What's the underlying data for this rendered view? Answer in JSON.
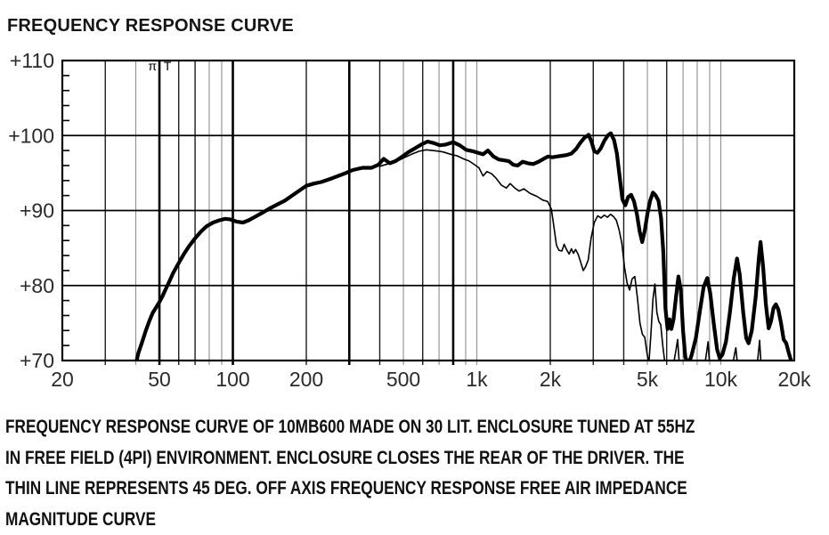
{
  "header": {
    "title": "FREQUENCY RESPONSE CURVE"
  },
  "caption": {
    "lines": [
      "FREQUENCY RESPONSE CURVE OF 10MB600 MADE ON 30 LIT. ENCLOSURE TUNED AT 55HZ",
      "IN FREE FIELD (4PI) ENVIRONMENT. ENCLOSURE CLOSES THE REAR OF THE DRIVER. THE",
      "THIN LINE REPRESENTS 45 DEG. OFF AXIS FREQUENCY RESPONSE FREE AIR IMPEDANCE",
      "MAGNITUDE CURVE"
    ]
  },
  "chart_data": {
    "type": "line",
    "title": "FREQUENCY RESPONSE CURVE",
    "x_axis": {
      "scale": "log",
      "min": 20,
      "max": 20000,
      "ticks": [
        {
          "label": "20",
          "value": 20
        },
        {
          "label": "50",
          "value": 50
        },
        {
          "label": "100",
          "value": 100
        },
        {
          "label": "200",
          "value": 200
        },
        {
          "label": "500",
          "value": 500
        },
        {
          "label": "1k",
          "value": 1000
        },
        {
          "label": "2k",
          "value": 2000
        },
        {
          "label": "5k",
          "value": 5000
        },
        {
          "label": "10k",
          "value": 10000
        },
        {
          "label": "20k",
          "value": 20000
        }
      ],
      "gridlines": [
        {
          "f": 30,
          "shade": "dark"
        },
        {
          "f": 40,
          "shade": "light"
        },
        {
          "f": 50,
          "shade": "heavy"
        },
        {
          "f": 60,
          "shade": "dark"
        },
        {
          "f": 70,
          "shade": "dark"
        },
        {
          "f": 80,
          "shade": "light"
        },
        {
          "f": 90,
          "shade": "light"
        },
        {
          "f": 100,
          "shade": "heavy"
        },
        {
          "f": 200,
          "shade": "dark"
        },
        {
          "f": 300,
          "shade": "heavy"
        },
        {
          "f": 400,
          "shade": "dark"
        },
        {
          "f": 500,
          "shade": "light"
        },
        {
          "f": 600,
          "shade": "dark"
        },
        {
          "f": 700,
          "shade": "light"
        },
        {
          "f": 800,
          "shade": "heavy"
        },
        {
          "f": 900,
          "shade": "light"
        },
        {
          "f": 1000,
          "shade": "light"
        },
        {
          "f": 2000,
          "shade": "dark"
        },
        {
          "f": 3000,
          "shade": "dark"
        },
        {
          "f": 4000,
          "shade": "dark"
        },
        {
          "f": 5000,
          "shade": "light"
        },
        {
          "f": 6000,
          "shade": "dark"
        },
        {
          "f": 7000,
          "shade": "light"
        },
        {
          "f": 8000,
          "shade": "light"
        },
        {
          "f": 9000,
          "shade": "light"
        },
        {
          "f": 10000,
          "shade": "light"
        }
      ]
    },
    "y_axis": {
      "min": 70,
      "max": 110,
      "ticks": [
        {
          "label": "+110",
          "value": 110
        },
        {
          "label": "+100",
          "value": 100
        },
        {
          "label": "+90",
          "value": 90
        },
        {
          "label": "+80",
          "value": 80
        },
        {
          "label": "+70",
          "value": 70
        }
      ],
      "gridline_values": [
        100,
        90,
        80
      ],
      "minor_tick_step": 2
    },
    "annotations": [
      {
        "text": "π",
        "f": 46.8,
        "db": 108.7
      },
      {
        "text": "T",
        "f": 54.0,
        "db": 108.7
      }
    ],
    "series": [
      {
        "key": "on-axis-curve",
        "name": "on-axis frequency response (thick line)",
        "color": "#000000",
        "width": 4.2,
        "points": [
          [
            40,
            69.5
          ],
          [
            41,
            71
          ],
          [
            42.5,
            72.5
          ],
          [
            44,
            74
          ],
          [
            45.5,
            75.3
          ],
          [
            47,
            76.4
          ],
          [
            48.5,
            77.1
          ],
          [
            50,
            77.8
          ],
          [
            51.5,
            78.6
          ],
          [
            53,
            79.5
          ],
          [
            55,
            80.6
          ],
          [
            57,
            81.7
          ],
          [
            60,
            83
          ],
          [
            63,
            84.2
          ],
          [
            66,
            85.2
          ],
          [
            70,
            86.3
          ],
          [
            74,
            87.2
          ],
          [
            78,
            87.9
          ],
          [
            83,
            88.4
          ],
          [
            88,
            88.7
          ],
          [
            93,
            88.9
          ],
          [
            98,
            88.8
          ],
          [
            104,
            88.5
          ],
          [
            110,
            88.4
          ],
          [
            116,
            88.7
          ],
          [
            124,
            89.2
          ],
          [
            132,
            89.7
          ],
          [
            142,
            90.3
          ],
          [
            152,
            90.8
          ],
          [
            163,
            91.3
          ],
          [
            175,
            92.0
          ],
          [
            188,
            92.7
          ],
          [
            200,
            93.3
          ],
          [
            215,
            93.6
          ],
          [
            230,
            93.8
          ],
          [
            250,
            94.2
          ],
          [
            270,
            94.6
          ],
          [
            290,
            95.0
          ],
          [
            310,
            95.4
          ],
          [
            340,
            95.7
          ],
          [
            370,
            95.7
          ],
          [
            395,
            96.1
          ],
          [
            415,
            96.9
          ],
          [
            440,
            96.3
          ],
          [
            465,
            96.6
          ],
          [
            495,
            97.2
          ],
          [
            525,
            97.8
          ],
          [
            558,
            98.3
          ],
          [
            592,
            98.8
          ],
          [
            628,
            99.2
          ],
          [
            665,
            99.0
          ],
          [
            705,
            98.7
          ],
          [
            745,
            98.8
          ],
          [
            800,
            99.1
          ],
          [
            850,
            98.7
          ],
          [
            905,
            98.1
          ],
          [
            963,
            97.9
          ],
          [
            1010,
            97.7
          ],
          [
            1060,
            97.5
          ],
          [
            1110,
            98.0
          ],
          [
            1170,
            97.2
          ],
          [
            1230,
            96.8
          ],
          [
            1290,
            96.7
          ],
          [
            1350,
            96.6
          ],
          [
            1410,
            96.1
          ],
          [
            1470,
            96.0
          ],
          [
            1540,
            96.5
          ],
          [
            1620,
            96.3
          ],
          [
            1700,
            96.2
          ],
          [
            1790,
            96.5
          ],
          [
            1880,
            96.9
          ],
          [
            1960,
            97.2
          ],
          [
            2040,
            97.1
          ],
          [
            2130,
            97.2
          ],
          [
            2230,
            97.3
          ],
          [
            2330,
            97.4
          ],
          [
            2440,
            97.6
          ],
          [
            2550,
            98.2
          ],
          [
            2650,
            99.0
          ],
          [
            2760,
            99.7
          ],
          [
            2870,
            100.1
          ],
          [
            2950,
            99.2
          ],
          [
            3030,
            97.9
          ],
          [
            3120,
            97.7
          ],
          [
            3220,
            98.3
          ],
          [
            3330,
            99.3
          ],
          [
            3440,
            100.0
          ],
          [
            3540,
            100.3
          ],
          [
            3650,
            99.4
          ],
          [
            3750,
            97.6
          ],
          [
            3850,
            94.5
          ],
          [
            3950,
            91.5
          ],
          [
            4060,
            90.7
          ],
          [
            4170,
            91.8
          ],
          [
            4290,
            92.1
          ],
          [
            4410,
            91.2
          ],
          [
            4530,
            89.5
          ],
          [
            4650,
            87.2
          ],
          [
            4760,
            85.8
          ],
          [
            4880,
            87.3
          ],
          [
            5000,
            89.5
          ],
          [
            5130,
            91.3
          ],
          [
            5270,
            92.4
          ],
          [
            5410,
            92.0
          ],
          [
            5550,
            91.3
          ],
          [
            5690,
            89.0
          ],
          [
            5810,
            84.5
          ],
          [
            5930,
            77.0
          ],
          [
            6050,
            74.2
          ],
          [
            6160,
            75.5
          ],
          [
            6270,
            74.2
          ],
          [
            6400,
            75.5
          ],
          [
            6550,
            78.5
          ],
          [
            6700,
            81.2
          ],
          [
            6850,
            79.5
          ],
          [
            7000,
            74.0
          ],
          [
            7150,
            70.5
          ],
          [
            7350,
            69.4
          ],
          [
            7600,
            70.8
          ],
          [
            7900,
            73.0
          ],
          [
            8200,
            76.5
          ],
          [
            8500,
            79.8
          ],
          [
            8800,
            81.0
          ],
          [
            9050,
            79.0
          ],
          [
            9350,
            75.0
          ],
          [
            9650,
            71.5
          ],
          [
            9900,
            70.3
          ],
          [
            10150,
            70.8
          ],
          [
            10500,
            72.5
          ],
          [
            10900,
            76.5
          ],
          [
            11300,
            81.0
          ],
          [
            11650,
            83.6
          ],
          [
            11950,
            81.5
          ],
          [
            12350,
            76.5
          ],
          [
            12700,
            73.0
          ],
          [
            13000,
            72.3
          ],
          [
            13400,
            74.0
          ],
          [
            13900,
            78.5
          ],
          [
            14300,
            83.5
          ],
          [
            14550,
            85.8
          ],
          [
            14900,
            82.5
          ],
          [
            15300,
            77.5
          ],
          [
            15700,
            74.3
          ],
          [
            16050,
            75.2
          ],
          [
            16450,
            77.0
          ],
          [
            16800,
            77.5
          ],
          [
            17200,
            76.8
          ],
          [
            17650,
            75.0
          ],
          [
            18100,
            72.8
          ],
          [
            18550,
            72.3
          ],
          [
            19000,
            71.0
          ],
          [
            19600,
            69.5
          ]
        ]
      },
      {
        "key": "off-axis-curve",
        "name": "45 deg off axis frequency response (thin line)",
        "color": "#000000",
        "width": 1.6,
        "points": [
          [
            400,
            95.9
          ],
          [
            430,
            96.2
          ],
          [
            460,
            96.4
          ],
          [
            500,
            97.0
          ],
          [
            540,
            97.5
          ],
          [
            580,
            97.9
          ],
          [
            620,
            98.1
          ],
          [
            660,
            98.0
          ],
          [
            700,
            97.9
          ],
          [
            730,
            97.8
          ],
          [
            780,
            97.5
          ],
          [
            830,
            97.3
          ],
          [
            880,
            96.9
          ],
          [
            930,
            96.6
          ],
          [
            980,
            96.1
          ],
          [
            1020,
            95.7
          ],
          [
            1060,
            94.6
          ],
          [
            1100,
            95.2
          ],
          [
            1150,
            94.9
          ],
          [
            1200,
            94.3
          ],
          [
            1260,
            93.4
          ],
          [
            1320,
            93.0
          ],
          [
            1370,
            93.6
          ],
          [
            1430,
            93.0
          ],
          [
            1490,
            92.6
          ],
          [
            1560,
            92.9
          ],
          [
            1650,
            92.3
          ],
          [
            1760,
            91.9
          ],
          [
            1860,
            91.4
          ],
          [
            1950,
            91.2
          ],
          [
            2020,
            90.2
          ],
          [
            2070,
            87.8
          ],
          [
            2120,
            85.4
          ],
          [
            2170,
            84.7
          ],
          [
            2230,
            84.6
          ],
          [
            2280,
            85.5
          ],
          [
            2330,
            84.8
          ],
          [
            2390,
            84.2
          ],
          [
            2440,
            84.9
          ],
          [
            2490,
            84.3
          ],
          [
            2540,
            84.8
          ],
          [
            2600,
            84.2
          ],
          [
            2660,
            83.2
          ],
          [
            2730,
            82.0
          ],
          [
            2790,
            82.5
          ],
          [
            2860,
            83.4
          ],
          [
            2940,
            86.3
          ],
          [
            3030,
            88.4
          ],
          [
            3130,
            89.3
          ],
          [
            3230,
            89.0
          ],
          [
            3330,
            89.4
          ],
          [
            3430,
            89.1
          ],
          [
            3530,
            89.5
          ],
          [
            3630,
            89.2
          ],
          [
            3730,
            88.7
          ],
          [
            3830,
            87.4
          ],
          [
            3930,
            85.6
          ],
          [
            4030,
            82.4
          ],
          [
            4130,
            80.3
          ],
          [
            4230,
            79.4
          ],
          [
            4330,
            80.9
          ],
          [
            4440,
            81.2
          ],
          [
            4550,
            78.4
          ],
          [
            4660,
            75.0
          ],
          [
            4770,
            73.5
          ],
          [
            4880,
            73.1
          ],
          [
            4980,
            71.0
          ],
          [
            5070,
            69.6
          ],
          [
            5170,
            73.5
          ],
          [
            5270,
            78.2
          ],
          [
            5370,
            80.2
          ],
          [
            5470,
            76.4
          ],
          [
            5570,
            75.2
          ],
          [
            5670,
            74.8
          ],
          [
            5790,
            71.8
          ],
          [
            5910,
            69.5
          ],
          [
            6400,
            69.5
          ],
          [
            6560,
            71.5
          ],
          [
            6650,
            72.8
          ],
          [
            6760,
            69.5
          ],
          [
            8600,
            69.5
          ],
          [
            8760,
            71.3
          ],
          [
            8870,
            72.5
          ],
          [
            8990,
            69.5
          ],
          [
            11200,
            69.5
          ],
          [
            11400,
            71.0
          ],
          [
            11520,
            71.7
          ],
          [
            11700,
            69.5
          ],
          [
            14100,
            69.5
          ],
          [
            14300,
            71.5
          ],
          [
            14420,
            72.7
          ],
          [
            14600,
            69.5
          ],
          [
            15500,
            69.5
          ]
        ]
      }
    ]
  }
}
